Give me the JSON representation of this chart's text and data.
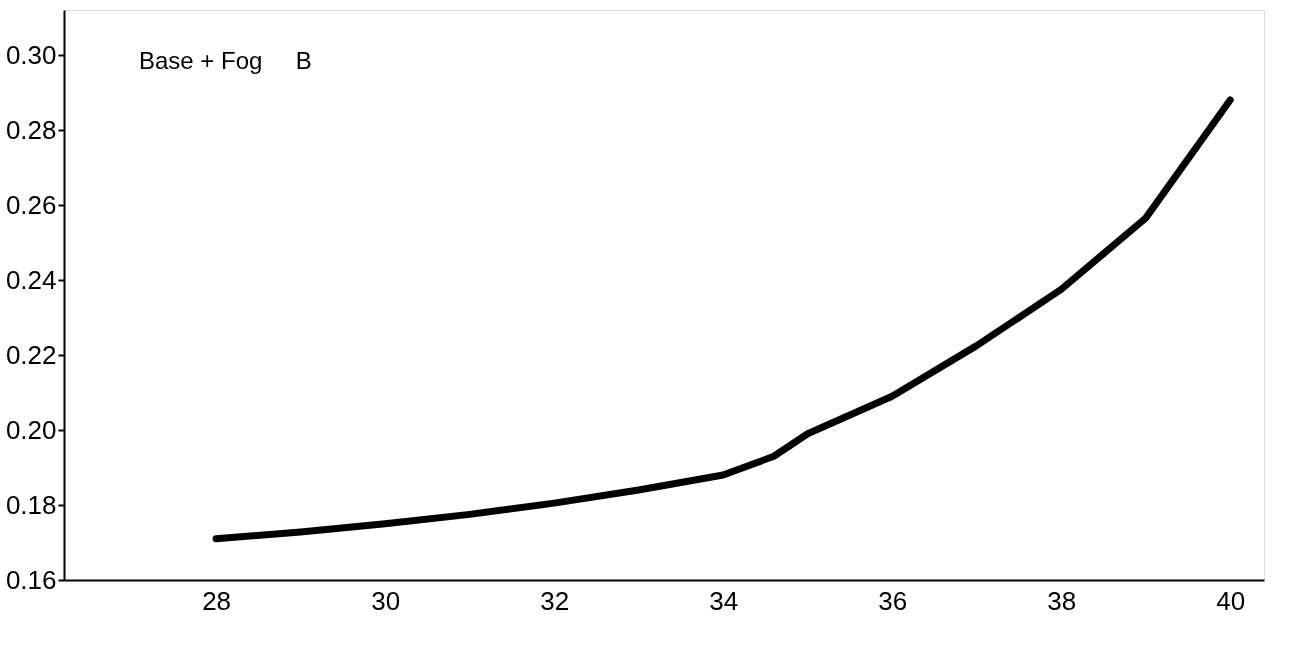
{
  "chart_data": {
    "type": "line",
    "x": [
      28,
      29,
      30,
      31,
      32,
      33,
      34,
      34.6,
      35,
      36,
      37,
      38,
      39,
      40
    ],
    "series": [
      {
        "color": "#000000",
        "values": [
          0.171,
          0.1728,
          0.175,
          0.1775,
          0.1805,
          0.184,
          0.188,
          0.193,
          0.199,
          0.209,
          0.2225,
          0.2375,
          0.2565,
          0.288
        ]
      }
    ],
    "xlim": [
      26.2,
      40.4
    ],
    "xticks": [
      28,
      30,
      32,
      34,
      36,
      38,
      40
    ],
    "ylim": [
      0.16,
      0.312
    ],
    "yticks": [
      {
        "value": 0.16,
        "label": "0.16"
      },
      {
        "value": 0.18,
        "label": "0.18"
      },
      {
        "value": 0.2,
        "label": "0.20"
      },
      {
        "value": 0.22,
        "label": "0.22"
      },
      {
        "value": 0.24,
        "label": "0.24"
      },
      {
        "value": 0.26,
        "label": "0.26"
      },
      {
        "value": 0.28,
        "label": "0.28"
      },
      {
        "value": 0.3,
        "label": "0.30"
      }
    ],
    "annotations": [
      "Base + Fog     B"
    ],
    "grid": false,
    "marker": "none",
    "line_style": "solid"
  }
}
